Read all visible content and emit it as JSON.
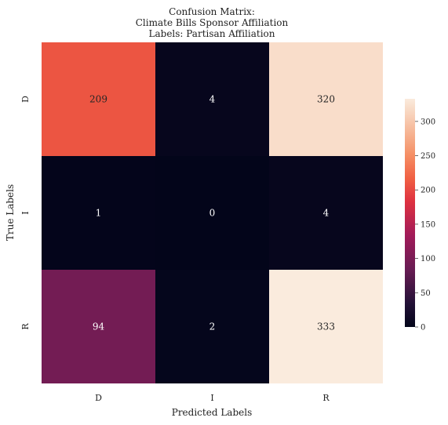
{
  "chart_data": {
    "type": "heatmap",
    "title_lines": [
      "Confusion Matrix:",
      "Climate Bills Sponsor Affiliation",
      "Labels: Partisan Affiliation"
    ],
    "xlabel": "Predicted Labels",
    "ylabel": "True Labels",
    "x_categories": [
      "D",
      "I",
      "R"
    ],
    "y_categories": [
      "D",
      "I",
      "R"
    ],
    "values": [
      [
        209,
        4,
        320
      ],
      [
        1,
        0,
        4
      ],
      [
        94,
        2,
        333
      ]
    ],
    "colorbar": {
      "range": [
        0,
        333
      ],
      "ticks": [
        "0",
        "50",
        "100",
        "150",
        "200",
        "250",
        "300"
      ],
      "colormap": "rocket"
    },
    "legend": "none"
  }
}
